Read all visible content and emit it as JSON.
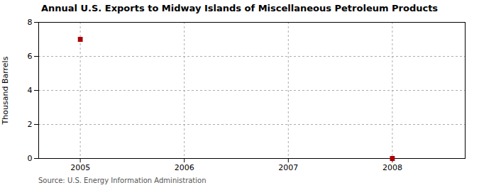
{
  "chart_data": {
    "type": "scatter",
    "title": "Annual U.S. Exports to Midway Islands of Miscellaneous Petroleum Products",
    "ylabel": "Thousand Barrels",
    "source": "Source: U.S. Energy Information Administration",
    "x": [
      2005,
      2008
    ],
    "values": [
      7,
      0
    ],
    "color": "#aa0000",
    "marker": "square",
    "xlim": [
      2004.6,
      2008.7
    ],
    "ylim": [
      0,
      8
    ],
    "xticks": [
      2005,
      2006,
      2007,
      2008
    ],
    "yticks": [
      0,
      2,
      4,
      6,
      8
    ],
    "grid": true
  }
}
